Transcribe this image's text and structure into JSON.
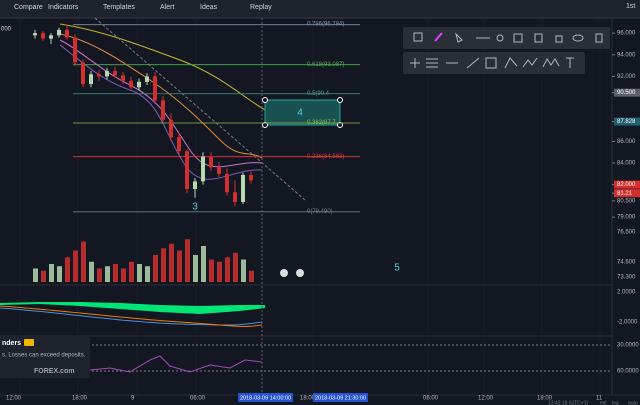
{
  "toolbar": {
    "left_label": "000",
    "items": [
      "Compare",
      "Indicators",
      "Templates",
      "Alert",
      "Ideas",
      "Replay"
    ],
    "interval": "1st"
  },
  "chart_data": {
    "type": "candlestick",
    "price_range": [
      75.5,
      97.4
    ],
    "ohlc": [
      [
        95.8,
        96.3,
        95.5,
        96.0
      ],
      [
        96.0,
        96.2,
        95.3,
        95.5
      ],
      [
        95.5,
        96.0,
        95.0,
        95.8
      ],
      [
        95.8,
        96.5,
        95.6,
        96.3
      ],
      [
        96.3,
        96.8,
        95.4,
        95.6
      ],
      [
        95.6,
        95.9,
        93.0,
        93.3
      ],
      [
        93.3,
        93.6,
        91.0,
        91.3
      ],
      [
        91.3,
        92.5,
        91.0,
        92.2
      ],
      [
        92.2,
        92.6,
        91.6,
        92.0
      ],
      [
        92.0,
        92.8,
        91.7,
        92.5
      ],
      [
        92.5,
        92.9,
        91.9,
        92.1
      ],
      [
        92.1,
        92.4,
        91.3,
        91.6
      ],
      [
        91.6,
        92.0,
        90.8,
        91.0
      ],
      [
        91.0,
        91.8,
        90.7,
        91.5
      ],
      [
        91.5,
        92.3,
        91.2,
        92.0
      ],
      [
        92.0,
        92.4,
        89.5,
        89.8
      ],
      [
        89.8,
        90.2,
        87.8,
        88.0
      ],
      [
        88.0,
        88.6,
        86.0,
        86.4
      ],
      [
        86.4,
        86.8,
        84.8,
        85.1
      ],
      [
        85.1,
        85.3,
        81.2,
        81.6
      ],
      [
        81.6,
        82.6,
        80.8,
        82.3
      ],
      [
        82.3,
        85.0,
        82.0,
        84.6
      ],
      [
        84.6,
        85.0,
        83.3,
        83.6
      ],
      [
        83.6,
        84.1,
        82.7,
        83.0
      ],
      [
        83.0,
        83.5,
        81.0,
        81.3
      ],
      [
        81.3,
        82.4,
        80.0,
        80.4
      ],
      [
        80.4,
        83.1,
        80.2,
        82.9
      ],
      [
        82.9,
        83.2,
        82.1,
        82.4
      ]
    ],
    "volume": [
      30,
      25,
      40,
      35,
      55,
      70,
      90,
      45,
      30,
      35,
      40,
      30,
      45,
      40,
      35,
      60,
      75,
      85,
      70,
      95,
      60,
      80,
      50,
      45,
      55,
      65,
      50,
      25
    ],
    "up_color": "#b5d9b0",
    "down_color": "#d32f2f",
    "yticks": [
      {
        "value": 96,
        "label": "96.000"
      },
      {
        "value": 94,
        "label": "94.000"
      },
      {
        "value": 92,
        "label": "92.000"
      },
      {
        "value": 90.5,
        "label": "90.500",
        "bg": "#5d606b"
      },
      {
        "value": 87.828,
        "label": "87.828",
        "bg": "#1f5f6e"
      },
      {
        "value": 86,
        "label": "86.000"
      },
      {
        "value": 84,
        "label": "84.000"
      },
      {
        "value": 82,
        "label": "82.000",
        "bg": "#d32f2f"
      },
      {
        "value": 81.21,
        "label": "81.21",
        "bg": "#d32f2f"
      },
      {
        "value": 80.5,
        "label": "80.500"
      },
      {
        "value": 79,
        "label": "79.000"
      }
    ],
    "lower_ticks": [
      "76.500",
      "74.600",
      "73.300"
    ],
    "fib_levels": [
      {
        "label": "0.786(96.784)",
        "value": 96.784,
        "color": "#7d8fa8"
      },
      {
        "label": "0.618(93.087)",
        "value": 93.087,
        "color": "#4caf50"
      },
      {
        "label": "0.5(90.4",
        "value": 90.4,
        "color": "#3f9f8a"
      },
      {
        "label": "0.382(87.7",
        "value": 87.7,
        "color": "#8bc34a"
      },
      {
        "label": "0.236(84.583)",
        "value": 84.583,
        "color": "#e53935"
      },
      {
        "label": "0(79.490)",
        "value": 79.49,
        "color": "#787b86"
      }
    ],
    "annotations": [
      "3",
      "4",
      "5"
    ],
    "indicator_ticks": [
      "2.0000",
      "-2.0000",
      "60.0000",
      "30.0000"
    ],
    "x_labels": [
      "12:00",
      "18:00",
      "9",
      "06:00",
      "18:00",
      "06:00",
      "12:00",
      "18:00",
      "11"
    ],
    "cursor_labels": [
      "2018-03-09 14:00:00",
      "2018-03-09 21:30:00"
    ]
  },
  "popup": {
    "title": "nders",
    "text": "s. Losses can exceed deposits.",
    "brand": "FOREX.com"
  },
  "status": [
    "13:42:18 (UTC+1)",
    "ext",
    "log",
    "auto"
  ]
}
